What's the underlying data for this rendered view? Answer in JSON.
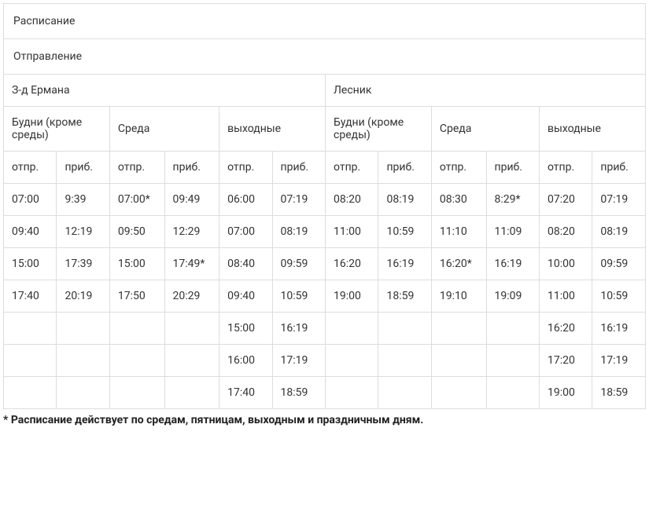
{
  "table": {
    "border_color": "#dddddd",
    "text_color": "#333333",
    "background": "#ffffff",
    "font_size": 14,
    "title": "Расписание",
    "subtitle": "Отправление",
    "stations": [
      {
        "name": "З-д Ермана"
      },
      {
        "name": "Лесник"
      }
    ],
    "day_groups": [
      {
        "label": "Будни (кроме среды)"
      },
      {
        "label": "Среда"
      },
      {
        "label": "выходные"
      }
    ],
    "col_labels": {
      "depart": "отпр.",
      "arrive": "приб."
    },
    "columns": [
      {
        "station": 0,
        "group": 0
      },
      {
        "station": 0,
        "group": 1
      },
      {
        "station": 0,
        "group": 2
      },
      {
        "station": 1,
        "group": 0
      },
      {
        "station": 1,
        "group": 1
      },
      {
        "station": 1,
        "group": 2
      }
    ],
    "rows": [
      [
        {
          "dep": "07:00",
          "arr": "9:39"
        },
        {
          "dep": "07:00*",
          "arr": "09:49"
        },
        {
          "dep": "06:00",
          "arr": "07:19"
        },
        {
          "dep": "08:20",
          "arr": "08:19"
        },
        {
          "dep": "08:30",
          "arr": "8:29*"
        },
        {
          "dep": "07:20",
          "arr": "07:19"
        }
      ],
      [
        {
          "dep": "09:40",
          "arr": "12:19"
        },
        {
          "dep": "09:50",
          "arr": "12:29"
        },
        {
          "dep": "07:00",
          "arr": "08:19"
        },
        {
          "dep": "11:00",
          "arr": "10:59"
        },
        {
          "dep": "11:10",
          "arr": "11:09"
        },
        {
          "dep": "08:20",
          "arr": "08:19"
        }
      ],
      [
        {
          "dep": "15:00",
          "arr": "17:39"
        },
        {
          "dep": "15:00",
          "arr": "17:49*"
        },
        {
          "dep": "08:40",
          "arr": "09:59"
        },
        {
          "dep": "16:20",
          "arr": "16:19"
        },
        {
          "dep": "16:20*",
          "arr": "16:19"
        },
        {
          "dep": "10:00",
          "arr": "09:59"
        }
      ],
      [
        {
          "dep": "17:40",
          "arr": "20:19"
        },
        {
          "dep": "17:50",
          "arr": "20:29"
        },
        {
          "dep": "09:40",
          "arr": "10:59"
        },
        {
          "dep": "19:00",
          "arr": "18:59"
        },
        {
          "dep": "19:10",
          "arr": "19:09"
        },
        {
          "dep": "11:00",
          "arr": "10:59"
        }
      ],
      [
        {
          "dep": "",
          "arr": ""
        },
        {
          "dep": "",
          "arr": ""
        },
        {
          "dep": "15:00",
          "arr": "16:19"
        },
        {
          "dep": "",
          "arr": ""
        },
        {
          "dep": "",
          "arr": ""
        },
        {
          "dep": "16:20",
          "arr": "16:19"
        }
      ],
      [
        {
          "dep": "",
          "arr": ""
        },
        {
          "dep": "",
          "arr": ""
        },
        {
          "dep": "16:00",
          "arr": "17:19"
        },
        {
          "dep": "",
          "arr": ""
        },
        {
          "dep": "",
          "arr": ""
        },
        {
          "dep": "17:20",
          "arr": "17:19"
        }
      ],
      [
        {
          "dep": "",
          "arr": ""
        },
        {
          "dep": "",
          "arr": ""
        },
        {
          "dep": "17:40",
          "arr": "18:59"
        },
        {
          "dep": "",
          "arr": ""
        },
        {
          "dep": "",
          "arr": ""
        },
        {
          "dep": "19:00",
          "arr": "18:59"
        }
      ]
    ]
  },
  "footnote": "* Расписание действует по средам, пятницам, выходным и праздничным дням."
}
